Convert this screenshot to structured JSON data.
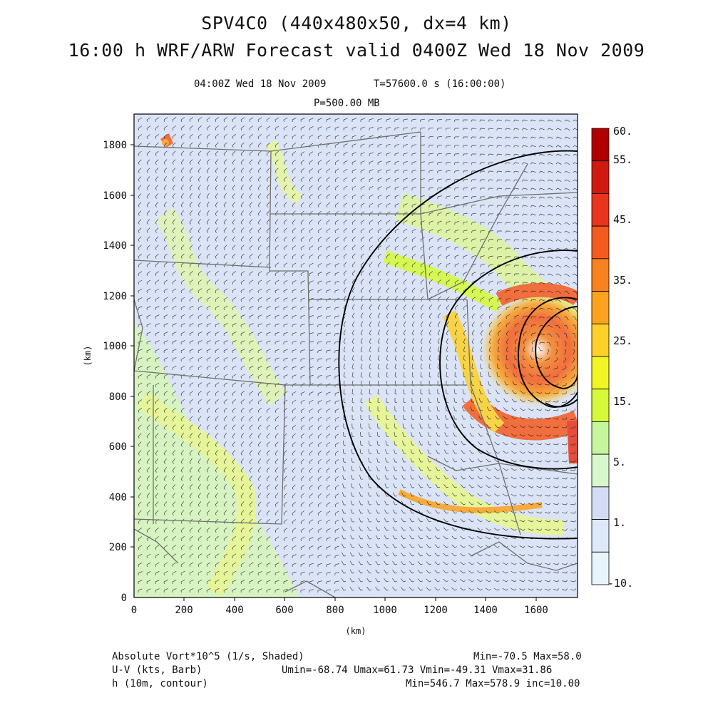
{
  "header": {
    "title_line1": "SPV4C0 (440x480x50, dx=4 km)",
    "title_line2": "16:00 h WRF/ARW Forecast valid 0400Z Wed 18 Nov 2009",
    "valid_time": "04:00Z Wed 18 Nov 2009",
    "sim_time": "T=57600.0 s (16:00:00)",
    "level": "P=500.00 MB"
  },
  "axes": {
    "x_ticks": [
      "0",
      "200",
      "400",
      "600",
      "800",
      "1000",
      "1200",
      "1400",
      "1600"
    ],
    "y_ticks": [
      "0",
      "200",
      "400",
      "600",
      "800",
      "1000",
      "1200",
      "1400",
      "1600",
      "1800"
    ],
    "x_label": "(km)",
    "y_label": "(km)"
  },
  "colorbar": {
    "labels": [
      "60.",
      "55.",
      "45.",
      "35.",
      "25.",
      "15.",
      "5.",
      "1.",
      "-10."
    ],
    "colors": [
      "#b00000",
      "#d01a10",
      "#e8351c",
      "#f55a1e",
      "#f8821f",
      "#fba21e",
      "#fdd12a",
      "#f2f524",
      "#d6fa3a",
      "#c6f59c",
      "#d8f7cc",
      "#d4dcf5",
      "#dde8f9",
      "#e8f4fb"
    ]
  },
  "footer": {
    "field1_name": "Absolute Vort*10^5 (1/s, Shaded)",
    "field1_stats": "Min=-70.5 Max=58.0",
    "field2_name": "U-V (kts, Barb)",
    "field2_stats": "Umin=-68.74 Umax=61.73 Vmin=-49.31 Vmax=31.86",
    "field3_name": "h (10m, contour)",
    "field3_stats": "Min=546.7 Max=578.9 inc=10.00"
  }
}
